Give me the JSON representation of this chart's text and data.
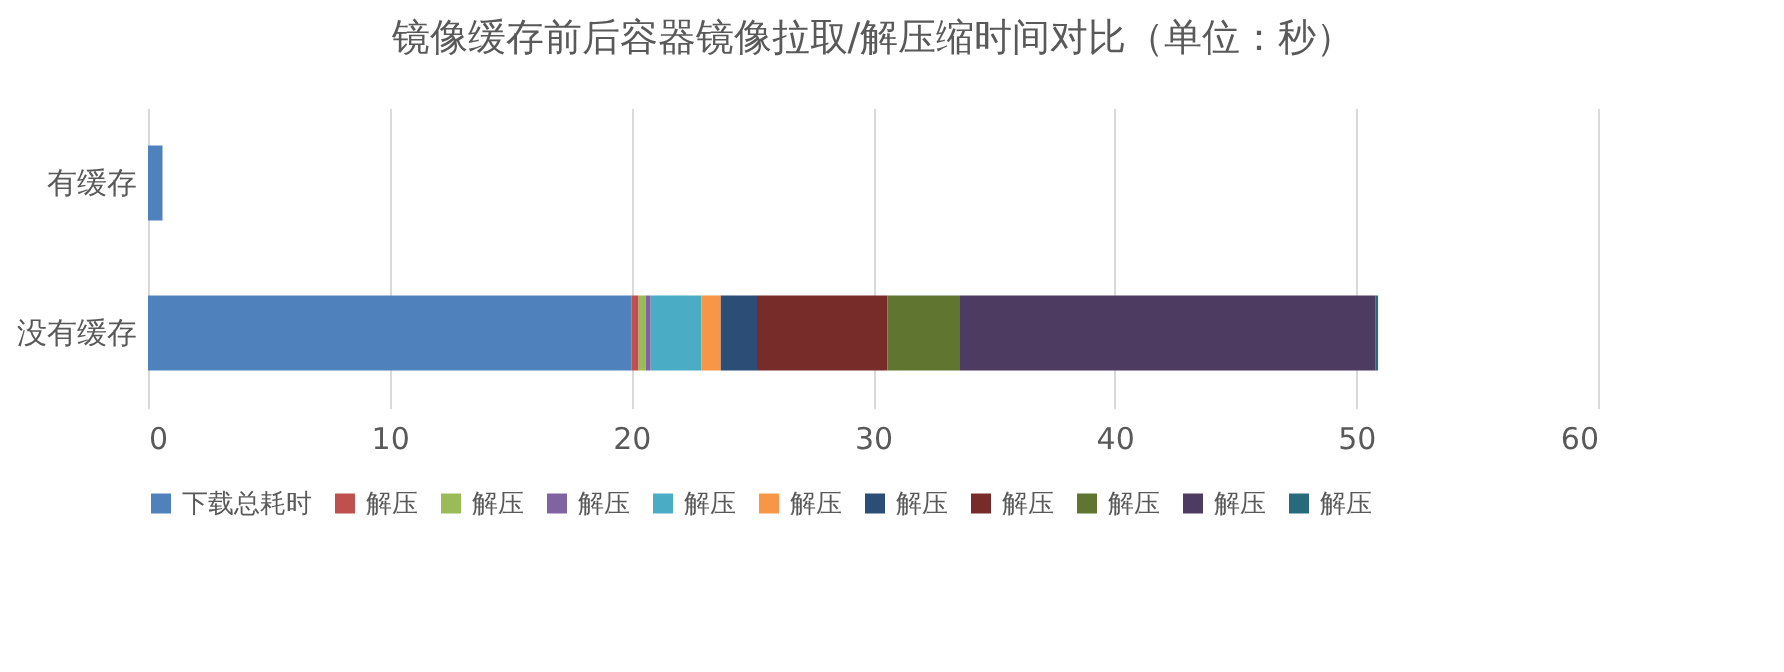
{
  "chart_data": {
    "type": "bar",
    "orientation": "horizontal",
    "stacked": true,
    "title": "镜像缓存前后容器镜像拉取/解压缩时间对比（单位：秒）",
    "categories": [
      "有缓存",
      "没有缓存"
    ],
    "series": [
      {
        "name": "下载总耗时",
        "color": "#4f81bd",
        "values": [
          0.6,
          20
        ]
      },
      {
        "name": "解压",
        "color": "#c0504d",
        "values": [
          0,
          0.3
        ]
      },
      {
        "name": "解压",
        "color": "#9bbb59",
        "values": [
          0,
          0.3
        ]
      },
      {
        "name": "解压",
        "color": "#8064a2",
        "values": [
          0,
          0.2
        ]
      },
      {
        "name": "解压",
        "color": "#4bacc6",
        "values": [
          0,
          2.1
        ]
      },
      {
        "name": "解压",
        "color": "#f79646",
        "values": [
          0,
          0.8
        ]
      },
      {
        "name": "解压",
        "color": "#2c4d75",
        "values": [
          0,
          1.5
        ]
      },
      {
        "name": "解压",
        "color": "#772c2a",
        "values": [
          0,
          5.4
        ]
      },
      {
        "name": "解压",
        "color": "#5f7530",
        "values": [
          0,
          3.0
        ]
      },
      {
        "name": "解压",
        "color": "#4d3b62",
        "values": [
          0,
          17.2
        ]
      },
      {
        "name": "解压",
        "color": "#276a7c",
        "values": [
          0,
          0.1
        ]
      }
    ],
    "xlim": [
      0,
      60
    ],
    "xticks": [
      0,
      10,
      20,
      30,
      40,
      50,
      60
    ],
    "grid": "x",
    "legend": "bottom"
  }
}
